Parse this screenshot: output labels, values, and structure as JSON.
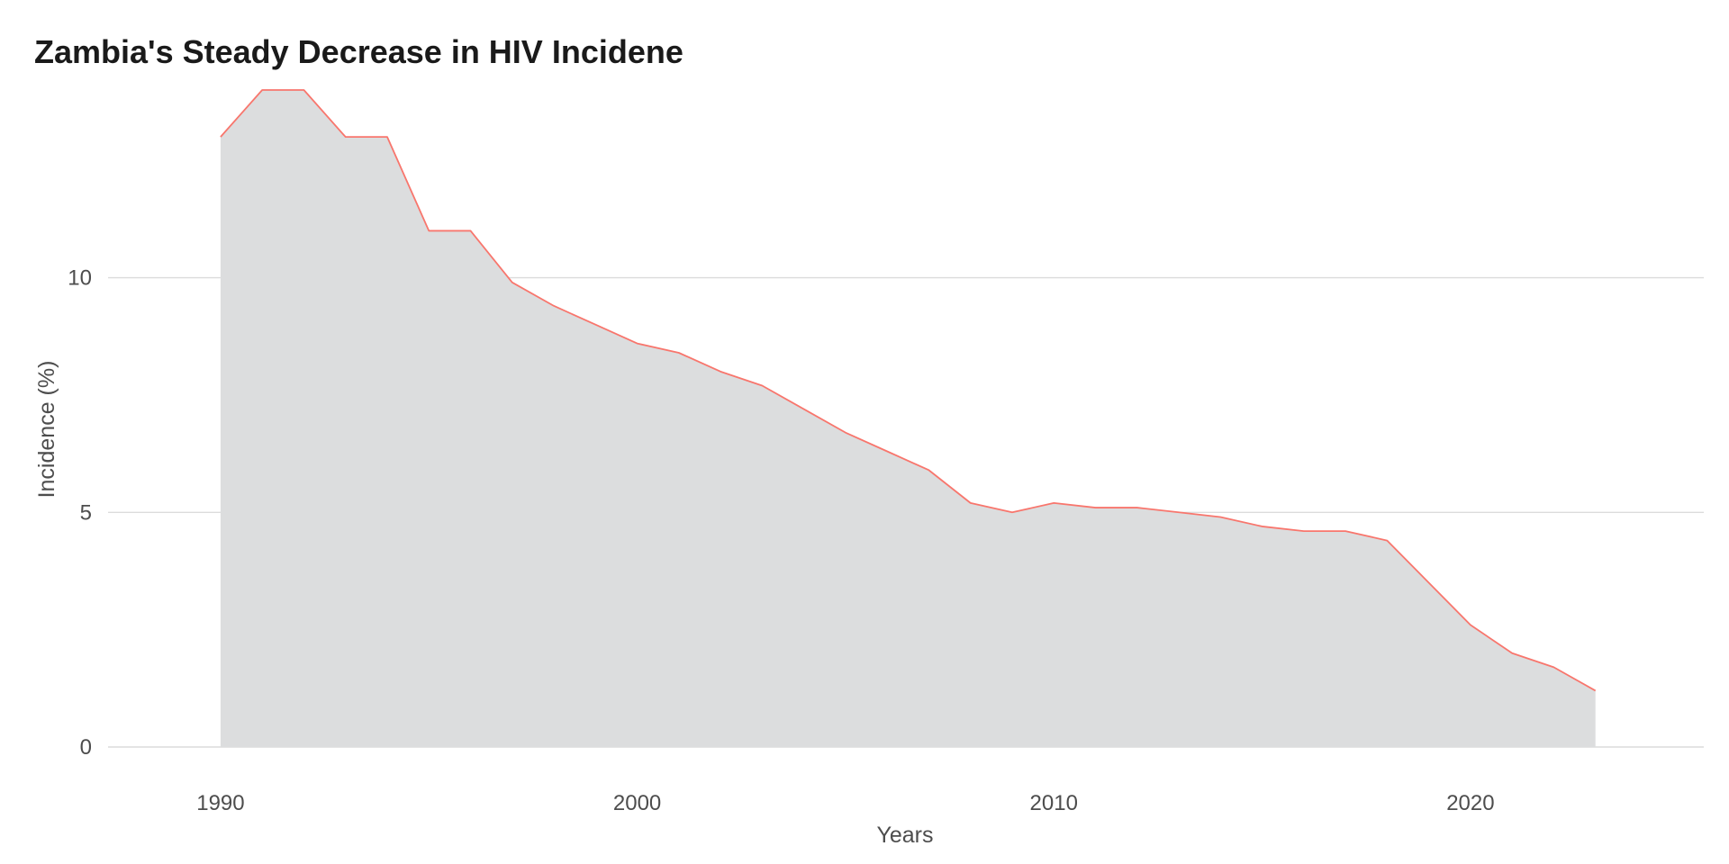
{
  "chart_data": {
    "type": "area",
    "title": "Zambia's Steady Decrease in HIV Incidene",
    "xlabel": "Years",
    "ylabel": "Incidence (%)",
    "xlim": [
      1987.3,
      2025.6
    ],
    "ylim": [
      0,
      14
    ],
    "x_ticks": [
      1990,
      2000,
      2010,
      2020
    ],
    "y_ticks": [
      0,
      5,
      10
    ],
    "grid": "horizontal major lines",
    "line_color": "#F8766D",
    "fill_color": "#DCDDDE",
    "x": [
      1990,
      1991,
      1992,
      1993,
      1994,
      1995,
      1996,
      1997,
      1998,
      1999,
      2000,
      2001,
      2002,
      2003,
      2004,
      2005,
      2006,
      2007,
      2008,
      2009,
      2010,
      2011,
      2012,
      2013,
      2014,
      2015,
      2016,
      2017,
      2018,
      2019,
      2020,
      2021,
      2022,
      2023
    ],
    "values": [
      13.0,
      14.0,
      14.0,
      13.0,
      13.0,
      11.0,
      11.0,
      9.9,
      9.4,
      9.0,
      8.6,
      8.4,
      8.0,
      7.7,
      7.2,
      6.7,
      6.3,
      5.9,
      5.2,
      5.0,
      5.2,
      5.1,
      5.1,
      5.0,
      4.9,
      4.7,
      4.6,
      4.6,
      4.4,
      3.5,
      2.6,
      2.0,
      1.7,
      1.2
    ]
  }
}
